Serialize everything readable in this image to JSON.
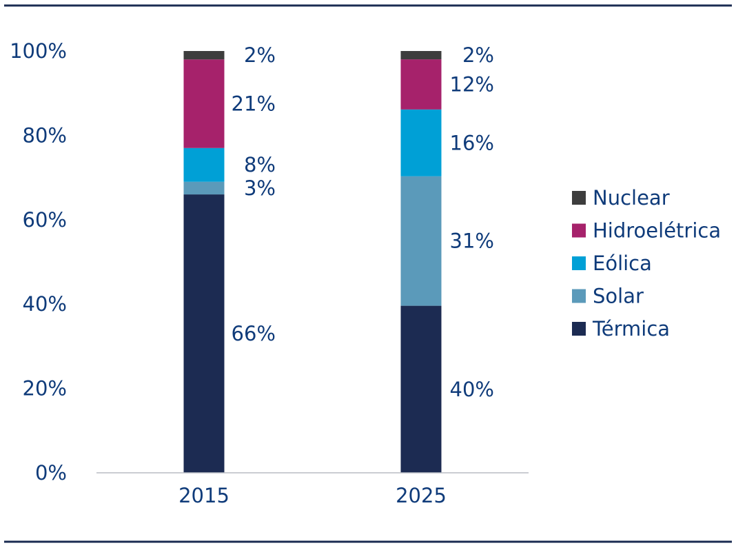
{
  "colors": {
    "text": "#0f3b7a",
    "rule": "#1a2b52",
    "axis": "#b8bcc4"
  },
  "chart_data": {
    "type": "bar",
    "stacked": true,
    "title": "",
    "xlabel": "",
    "ylabel": "",
    "categories": [
      "2015",
      "2025"
    ],
    "ylim": [
      0,
      100
    ],
    "y_ticks": [
      {
        "value": 0,
        "label": "0%"
      },
      {
        "value": 20,
        "label": "20%"
      },
      {
        "value": 40,
        "label": "40%"
      },
      {
        "value": 60,
        "label": "60%"
      },
      {
        "value": 80,
        "label": "80%"
      },
      {
        "value": 100,
        "label": "100%"
      }
    ],
    "grid": false,
    "legend_position": "right",
    "series": [
      {
        "name": "Térmica",
        "color": "#1c2b52",
        "values": [
          66,
          40
        ],
        "labels": [
          "66%",
          "40%"
        ]
      },
      {
        "name": "Solar",
        "color": "#5b9aba",
        "values": [
          3,
          31
        ],
        "labels": [
          "3%",
          "31%"
        ]
      },
      {
        "name": "Eólica",
        "color": "#00a0d6",
        "values": [
          8,
          16
        ],
        "labels": [
          "8%",
          "16%"
        ]
      },
      {
        "name": "Hidroelétrica",
        "color": "#a6226b",
        "values": [
          21,
          12
        ],
        "labels": [
          "21%",
          "12%"
        ]
      },
      {
        "name": "Nuclear",
        "color": "#3d3d3d",
        "values": [
          2,
          2
        ],
        "labels": [
          "2%",
          "2%"
        ]
      }
    ]
  }
}
